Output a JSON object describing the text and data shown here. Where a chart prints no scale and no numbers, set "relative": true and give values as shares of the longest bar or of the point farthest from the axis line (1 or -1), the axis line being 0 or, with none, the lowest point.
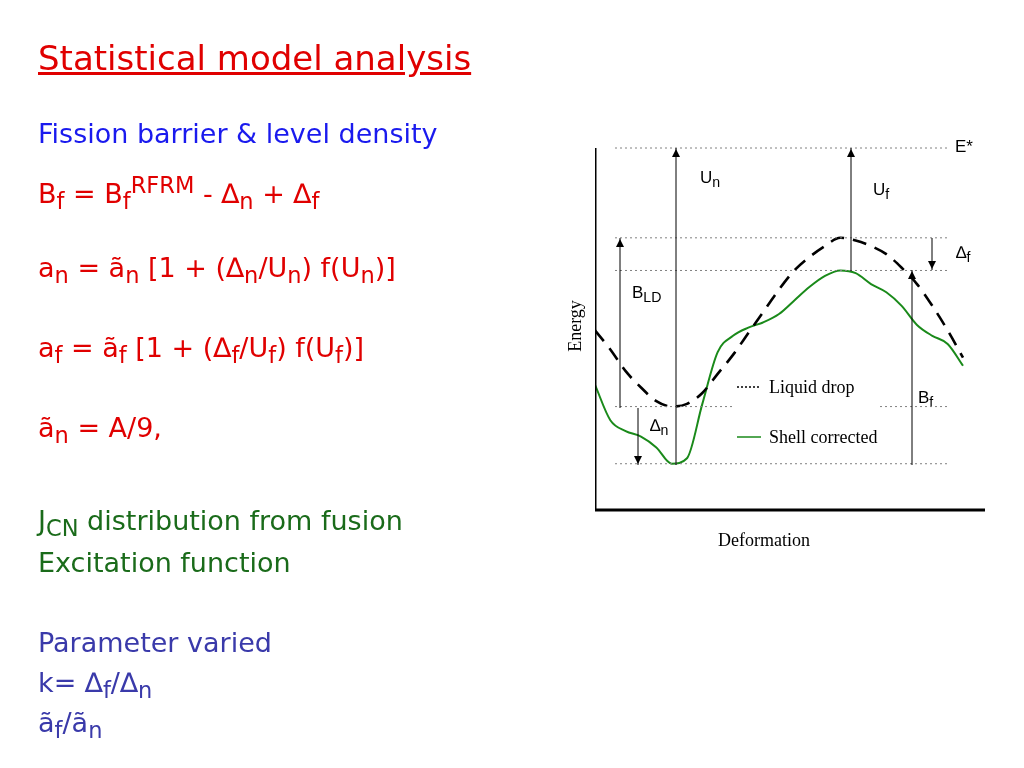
{
  "chart_data": {
    "type": "line",
    "title": "Statistical model analysis",
    "subtitle": "Fission barrier & level density",
    "xlabel": "Deformation",
    "ylabel": "Energy",
    "relative": true,
    "marker": "none",
    "legend": "bottom right",
    "categories": [
      null,
      null,
      null,
      null,
      null,
      null,
      null,
      null,
      null,
      null,
      null,
      null,
      null,
      null,
      null,
      null,
      null,
      null,
      null,
      null,
      null,
      null,
      null,
      null,
      null
    ],
    "series": [
      {
        "name": "Liquid drop",
        "color": "#000000",
        "line_style": "dashed",
        "values": [
          0.66,
          0.59,
          0.51,
          0.45,
          0.4,
          0.38,
          0.39,
          0.43,
          0.5,
          0.57,
          0.65,
          0.73,
          0.81,
          0.88,
          0.93,
          0.97,
          1.0,
          0.99,
          0.97,
          0.94,
          0.89,
          0.83,
          0.75,
          0.66,
          0.56
        ]
      },
      {
        "name": "Shell corrected",
        "color": "#1a8a1a",
        "line_style": "solid",
        "values": [
          0.46,
          0.33,
          0.29,
          0.27,
          0.23,
          0.17,
          0.19,
          0.39,
          0.58,
          0.64,
          0.67,
          0.69,
          0.72,
          0.77,
          0.82,
          0.86,
          0.88,
          0.87,
          0.83,
          0.8,
          0.75,
          0.68,
          0.64,
          0.61,
          0.53
        ]
      }
    ],
    "ref_lines": [
      {
        "axis": "y",
        "value": 1.33,
        "label": "E*",
        "color": "#808080",
        "line_style": "dotted"
      },
      {
        "axis": "y",
        "value": 1.0,
        "label": null,
        "color": "#808080",
        "line_style": "dotted"
      },
      {
        "axis": "y",
        "value": 0.88,
        "label": null,
        "color": "#808080",
        "line_style": "dotted"
      },
      {
        "axis": "y",
        "value": 0.38,
        "label": null,
        "color": "#808080",
        "line_style": "dotted"
      },
      {
        "axis": "y",
        "value": 0.17,
        "label": null,
        "color": "#808080",
        "line_style": "dotted"
      }
    ],
    "annotations": [
      "B$_{f}$ = B$_{f}$$^{RFRM}$ - ∆$_{n}$ + ∆$_{f}$",
      "a$_{n}$ = ã$_{n}$ [1 + (∆$_{n}$/U$_{n}$) f(U$_{n}$)]",
      "a$_{f}$ =  ã$_{f}$ [1 + (∆$_{f}$/U$_{f}$) f(U$_{f}$)]",
      "ã$_{n}$ = A/9,",
      "J$_{CN}$ distribution from fusion",
      "Excitation function",
      "Parameter varied",
      "k= ∆$_{f}$/∆$_{n}$",
      "ã$_{f}$/ã$_{n}$",
      "U$_{n}$",
      "U$_{f}$",
      "B$_{LD}$",
      "∆$_{n}$",
      "∆$_{f}$",
      "B$_{f}$"
    ]
  }
}
